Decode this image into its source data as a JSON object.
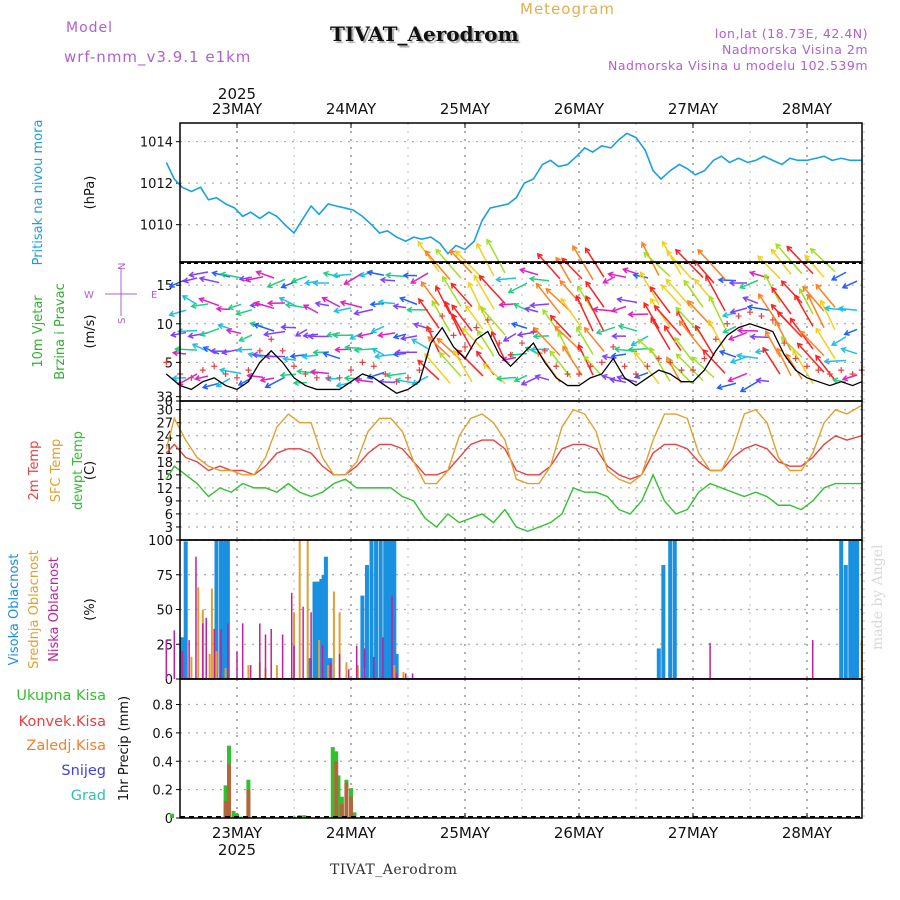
{
  "header": {
    "model_label": "Model",
    "model_name": "wrf-nmm_v3.9.1 e1km",
    "meteogram_label": "Meteogram",
    "station_title": "TIVAT_Aerodrom",
    "lonlat": "lon,lat (18.73E, 42.4N)",
    "altitude": "Nadmorska Visina 2m",
    "model_altitude": "Nadmorska Visina u modelu 102.539m",
    "footer_station": "TIVAT_Aerodrom",
    "made_by": "made by Angel"
  },
  "axes_time": {
    "year_label": "2025",
    "day_labels": [
      "23MAY",
      "24MAY",
      "25MAY",
      "26MAY",
      "27MAY",
      "28MAY"
    ]
  },
  "colors": {
    "pressure": "#1aa0e0",
    "temp2m": "#e84040",
    "sfc_temp": "#e0a030",
    "dewpt": "#30c030",
    "high_cloud": "#1a90e0",
    "mid_cloud": "#e0a030",
    "low_cloud": "#c020a0",
    "total_precip": "#30c030",
    "conv_precip": "#e84040",
    "frozen_precip": "#f08030",
    "snow": "#4040e0",
    "hail": "#30c0b0"
  },
  "chart_data": [
    {
      "type": "line",
      "panel": "pressure",
      "ylabel_side": "Pritisak na nivou mora",
      "unit": "(hPa)",
      "ylim": [
        1008.2,
        1014.9
      ],
      "yticks": [
        1010,
        1012,
        1014
      ],
      "xlim": [
        -0.62,
        5.48
      ],
      "series": [
        {
          "values_x": [
            -0.62,
            -0.55,
            -0.48,
            -0.4,
            -0.32,
            -0.25,
            -0.18,
            -0.1,
            -0.02,
            0.05,
            0.12,
            0.2,
            0.28,
            0.35,
            0.42,
            0.5,
            0.58,
            0.65,
            0.72,
            0.8,
            0.87,
            0.95,
            1.02,
            1.1,
            1.18,
            1.25,
            1.32,
            1.4,
            1.48,
            1.55,
            1.62,
            1.7,
            1.78,
            1.85,
            1.92,
            2.0,
            2.08,
            2.15,
            2.22,
            2.3,
            2.38,
            2.45,
            2.52,
            2.6,
            2.68,
            2.75,
            2.82,
            2.9,
            2.98,
            3.05,
            3.12,
            3.2,
            3.28,
            3.35,
            3.42,
            3.5,
            3.58,
            3.65,
            3.72,
            3.8,
            3.88,
            3.95,
            4.02,
            4.1,
            4.18,
            4.25,
            4.32,
            4.4,
            4.48,
            4.55,
            4.62,
            4.7,
            4.78,
            4.85,
            4.92,
            5.0,
            5.08,
            5.15,
            5.22,
            5.3,
            5.38,
            5.48
          ],
          "values_y": [
            1013.0,
            1012.2,
            1011.8,
            1011.6,
            1011.8,
            1011.2,
            1011.3,
            1011.0,
            1010.8,
            1010.4,
            1010.6,
            1010.3,
            1010.6,
            1010.4,
            1010.0,
            1009.6,
            1010.3,
            1010.9,
            1010.5,
            1011.0,
            1010.9,
            1010.8,
            1010.7,
            1010.4,
            1010.0,
            1009.6,
            1009.7,
            1009.4,
            1009.2,
            1009.4,
            1009.3,
            1009.4,
            1009.1,
            1008.6,
            1009.0,
            1008.8,
            1009.2,
            1010.2,
            1010.8,
            1010.9,
            1011.0,
            1011.3,
            1012.0,
            1012.2,
            1012.9,
            1013.1,
            1012.8,
            1012.9,
            1013.3,
            1013.7,
            1013.5,
            1013.8,
            1013.7,
            1014.1,
            1014.4,
            1014.2,
            1013.6,
            1012.6,
            1012.2,
            1012.6,
            1012.9,
            1012.7,
            1012.4,
            1012.6,
            1013.1,
            1013.3,
            1013.0,
            1013.2,
            1013.0,
            1013.1,
            1013.3,
            1013.1,
            1012.9,
            1013.2,
            1013.1,
            1013.1,
            1013.2,
            1013.3,
            1013.1,
            1013.2,
            1013.1,
            1013.1
          ]
        }
      ]
    },
    {
      "type": "line",
      "panel": "wind",
      "ylabel_side": [
        "10m Vjetar",
        "Brzina i Pravac"
      ],
      "unit": "(m/s)",
      "compass": {
        "n": "N",
        "w": "W",
        "e": "E",
        "s": "S"
      },
      "ylim": [
        0,
        18
      ],
      "yticks": [
        0,
        5,
        10,
        15
      ],
      "series": [
        {
          "name": "speed",
          "x": [
            -0.62,
            -0.5,
            -0.4,
            -0.3,
            -0.2,
            -0.1,
            0.0,
            0.1,
            0.2,
            0.3,
            0.4,
            0.5,
            0.6,
            0.7,
            0.8,
            0.9,
            1.0,
            1.1,
            1.2,
            1.3,
            1.4,
            1.5,
            1.6,
            1.7,
            1.8,
            1.9,
            2.0,
            2.1,
            2.2,
            2.3,
            2.4,
            2.5,
            2.6,
            2.7,
            2.8,
            2.9,
            3.0,
            3.1,
            3.2,
            3.3,
            3.4,
            3.5,
            3.6,
            3.7,
            3.8,
            3.9,
            4.0,
            4.1,
            4.2,
            4.3,
            4.4,
            4.5,
            4.6,
            4.7,
            4.8,
            4.9,
            5.0,
            5.1,
            5.2,
            5.3,
            5.4,
            5.48
          ],
          "y": [
            3.5,
            2.0,
            1.5,
            2.5,
            3.0,
            2.0,
            1.5,
            2.5,
            5.0,
            6.5,
            5.0,
            3.0,
            2.0,
            1.5,
            1.5,
            1.5,
            2.5,
            3.5,
            3.0,
            2.0,
            1.0,
            1.5,
            2.5,
            7.5,
            9.5,
            7.0,
            5.5,
            8.0,
            9.0,
            6.0,
            4.5,
            6.0,
            7.5,
            5.0,
            3.0,
            2.0,
            2.0,
            3.0,
            3.5,
            5.5,
            3.0,
            2.0,
            3.0,
            4.0,
            3.5,
            2.5,
            2.5,
            4.0,
            6.5,
            8.5,
            9.5,
            10.0,
            9.5,
            9.0,
            6.0,
            4.0,
            3.0,
            2.5,
            2.0,
            2.5,
            2.0,
            2.5
          ]
        }
      ]
    },
    {
      "type": "line",
      "panel": "temperature",
      "ylabel_side": [
        "2m Temp",
        "SFC Temp",
        "dewpt Temp"
      ],
      "unit": "(C)",
      "ylim": [
        0,
        32
      ],
      "yticks": [
        0,
        3,
        6,
        9,
        12,
        15,
        18,
        21,
        24,
        27,
        30,
        33
      ],
      "series": [
        {
          "name": "2m Temp",
          "x": [
            -0.62,
            -0.55,
            -0.45,
            -0.35,
            -0.25,
            -0.15,
            -0.05,
            0.05,
            0.15,
            0.25,
            0.35,
            0.45,
            0.55,
            0.65,
            0.75,
            0.85,
            0.95,
            1.05,
            1.15,
            1.25,
            1.35,
            1.45,
            1.55,
            1.65,
            1.75,
            1.85,
            1.95,
            2.05,
            2.15,
            2.25,
            2.35,
            2.45,
            2.55,
            2.65,
            2.75,
            2.85,
            2.95,
            3.05,
            3.15,
            3.25,
            3.35,
            3.45,
            3.55,
            3.65,
            3.75,
            3.85,
            3.95,
            4.05,
            4.15,
            4.25,
            4.35,
            4.45,
            4.55,
            4.65,
            4.75,
            4.85,
            4.95,
            5.05,
            5.15,
            5.25,
            5.35,
            5.48
          ],
          "y": [
            20,
            22,
            19,
            18,
            16,
            17,
            16,
            16,
            15,
            17,
            20,
            21,
            21,
            20,
            17,
            15,
            15,
            17,
            20,
            22,
            22,
            21,
            18,
            15,
            15,
            16,
            19,
            22,
            23,
            23,
            21,
            16,
            15,
            15,
            17,
            21,
            22,
            22,
            21,
            17,
            15,
            14,
            15,
            20,
            22,
            22,
            21,
            18,
            16,
            16,
            19,
            21,
            22,
            21,
            18,
            17,
            17,
            19,
            22,
            24,
            23,
            24
          ]
        },
        {
          "name": "SFC Temp",
          "x": [
            -0.62,
            -0.55,
            -0.45,
            -0.35,
            -0.25,
            -0.15,
            -0.05,
            0.05,
            0.15,
            0.25,
            0.35,
            0.45,
            0.55,
            0.65,
            0.75,
            0.85,
            0.95,
            1.05,
            1.15,
            1.25,
            1.35,
            1.45,
            1.55,
            1.65,
            1.75,
            1.85,
            1.95,
            2.05,
            2.15,
            2.25,
            2.35,
            2.45,
            2.55,
            2.65,
            2.75,
            2.85,
            2.95,
            3.05,
            3.15,
            3.25,
            3.35,
            3.45,
            3.55,
            3.65,
            3.75,
            3.85,
            3.95,
            4.05,
            4.15,
            4.25,
            4.35,
            4.45,
            4.55,
            4.65,
            4.75,
            4.85,
            4.95,
            5.05,
            5.15,
            5.25,
            5.35,
            5.48
          ],
          "y": [
            21,
            28,
            23,
            19,
            17,
            16,
            16,
            15,
            15,
            19,
            26,
            29,
            27,
            27,
            19,
            15,
            15,
            18,
            25,
            28,
            28,
            25,
            18,
            13,
            13,
            16,
            24,
            28,
            29,
            27,
            23,
            14,
            13,
            13,
            17,
            26,
            30,
            29,
            25,
            16,
            14,
            13,
            15,
            23,
            29,
            29,
            28,
            20,
            16,
            16,
            21,
            29,
            30,
            27,
            19,
            16,
            16,
            20,
            27,
            30,
            29,
            31
          ]
        },
        {
          "name": "dewpt Temp",
          "x": [
            -0.62,
            -0.55,
            -0.45,
            -0.35,
            -0.25,
            -0.15,
            -0.05,
            0.05,
            0.15,
            0.25,
            0.35,
            0.45,
            0.55,
            0.65,
            0.75,
            0.85,
            0.95,
            1.05,
            1.15,
            1.25,
            1.35,
            1.45,
            1.55,
            1.65,
            1.75,
            1.85,
            1.95,
            2.05,
            2.15,
            2.25,
            2.35,
            2.45,
            2.55,
            2.65,
            2.75,
            2.85,
            2.95,
            3.05,
            3.15,
            3.25,
            3.35,
            3.45,
            3.55,
            3.65,
            3.75,
            3.85,
            3.95,
            4.05,
            4.15,
            4.25,
            4.35,
            4.45,
            4.55,
            4.65,
            4.75,
            4.85,
            4.95,
            5.05,
            5.15,
            5.25,
            5.35,
            5.48
          ],
          "y": [
            14,
            17,
            15,
            13,
            10,
            12,
            11,
            13,
            12,
            12,
            11,
            13,
            11,
            10,
            11,
            13,
            14,
            12,
            12,
            12,
            12,
            10,
            9,
            5,
            3,
            6,
            4,
            5,
            6,
            4,
            7,
            3,
            2,
            3,
            4,
            6,
            12,
            11,
            11,
            10,
            7,
            6,
            9,
            15,
            9,
            6,
            7,
            11,
            13,
            12,
            11,
            10,
            11,
            10,
            8,
            8,
            7,
            9,
            12,
            13,
            13,
            13
          ]
        }
      ]
    },
    {
      "type": "bar",
      "panel": "cloud",
      "ylabel_side": [
        "Visoka Oblacnost",
        "Srednja Oblacnost",
        "Niska Oblacnost"
      ],
      "unit": "(%)",
      "ylim": [
        0,
        100
      ],
      "yticks": [
        0,
        25,
        50,
        75,
        100
      ],
      "series": [
        {
          "name": "Visoka Oblacnost",
          "x": [
            -0.48,
            -0.45,
            -0.18,
            -0.14,
            -0.12,
            -0.1,
            -0.08,
            0.64,
            0.68,
            0.7,
            0.72,
            0.74,
            0.76,
            0.78,
            0.8,
            0.82,
            1.1,
            1.14,
            1.18,
            1.22,
            1.26,
            1.3,
            1.32,
            1.34,
            1.36,
            1.38,
            1.4,
            3.7,
            3.74,
            3.8,
            3.84,
            5.3,
            5.34,
            5.38,
            5.4,
            5.42,
            5.44
          ],
          "y": [
            30,
            99,
            100,
            100,
            99,
            100,
            100,
            15,
            70,
            70,
            70,
            72,
            75,
            88,
            15,
            15,
            60,
            82,
            100,
            100,
            100,
            100,
            100,
            100,
            100,
            100,
            18,
            22,
            82,
            100,
            100,
            100,
            82,
            100,
            100,
            100,
            100
          ]
        },
        {
          "name": "Srednja Oblacnost",
          "x": [
            -0.4,
            -0.34,
            -0.3,
            -0.24,
            -0.22,
            -0.18,
            -0.1,
            0.1,
            0.2,
            0.25,
            0.35,
            0.5,
            0.55,
            0.62,
            0.72,
            0.8,
            0.85,
            0.9,
            0.96,
            1.06,
            1.12,
            1.38,
            1.46,
            5.48
          ],
          "y": [
            16,
            66,
            50,
            18,
            65,
            20,
            8,
            10,
            12,
            8,
            10,
            48,
            100,
            100,
            28,
            10,
            63,
            48,
            12,
            10,
            8,
            10,
            5,
            28
          ]
        },
        {
          "name": "Niska Oblacnost",
          "x": [
            -0.62,
            -0.55,
            -0.48,
            -0.42,
            -0.36,
            -0.3,
            -0.27,
            -0.2,
            -0.14,
            -0.08,
            0.0,
            0.05,
            0.12,
            0.2,
            0.25,
            0.3,
            0.4,
            0.48,
            0.5,
            0.58,
            0.65,
            0.75,
            0.82,
            0.9,
            0.98,
            1.05,
            1.12,
            1.2,
            1.28,
            1.36,
            1.4,
            1.48,
            1.54,
            4.15,
            5.05
          ],
          "y": [
            28,
            35,
            20,
            28,
            88,
            40,
            44,
            36,
            36,
            40,
            20,
            40,
            10,
            40,
            32,
            36,
            32,
            62,
            24,
            52,
            48,
            24,
            12,
            18,
            7,
            24,
            22,
            16,
            30,
            60,
            4,
            4,
            4,
            26,
            28
          ]
        }
      ]
    },
    {
      "type": "bar",
      "panel": "precip",
      "ylabel_side": "1hr Precip (mm)",
      "legend": [
        "Ukupna Kisa",
        "Konvek.Kisa",
        "Zaledj.Kisa",
        "Snijeg",
        "Grad"
      ],
      "ylim": [
        0,
        0.98
      ],
      "yticks": [
        0,
        0.2,
        0.4,
        0.6,
        0.8
      ],
      "series": [
        {
          "name": "Ukupna Kisa",
          "x": [
            -0.57,
            -0.1,
            -0.07,
            -0.03,
            0.0,
            0.03,
            0.1,
            0.5,
            0.55,
            0.59,
            0.84,
            0.87,
            0.89,
            0.92,
            0.96,
            1.0,
            1.03
          ],
          "y": [
            0.03,
            0.23,
            0.51,
            0.05,
            0.03,
            0.01,
            0.27,
            0.01,
            0.02,
            0.02,
            0.5,
            0.47,
            0.3,
            0.15,
            0.27,
            0.21,
            0.04
          ]
        },
        {
          "name": "Konvek.Kisa",
          "x": [
            -0.1,
            -0.07,
            0.1,
            0.87,
            0.92,
            0.96,
            1.0
          ],
          "y": [
            0.12,
            0.38,
            0.2,
            0.4,
            0.1,
            0.25,
            0.15
          ]
        }
      ]
    }
  ]
}
